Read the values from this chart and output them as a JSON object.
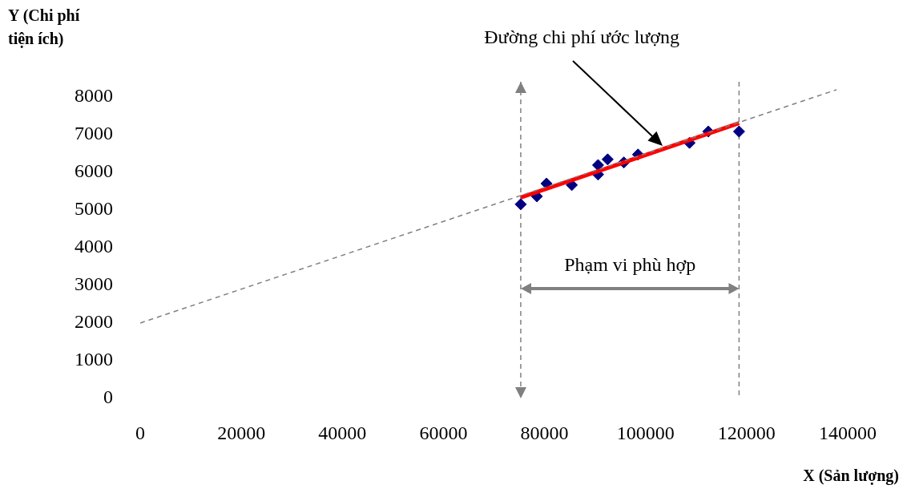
{
  "chart_data": {
    "type": "scatter",
    "xlabel": "X (Sản lượng)",
    "ylabel": "Y (Chi phí tiện ích)",
    "xlim": [
      0,
      140000
    ],
    "ylim": [
      0,
      8400
    ],
    "xticks": [
      0,
      20000,
      40000,
      60000,
      80000,
      100000,
      120000,
      140000
    ],
    "yticks": [
      0,
      1000,
      2000,
      3000,
      4000,
      5000,
      6000,
      7000,
      8000
    ],
    "grid": false,
    "legend": false,
    "series": [
      {
        "type": "line",
        "color": "#808080",
        "line_style": "dashed",
        "marker": "none",
        "x": [
          0,
          137800
        ],
        "values": [
          2000,
          8190
        ]
      },
      {
        "type": "line",
        "color": "#ff0000",
        "line_style": "solid",
        "marker": "none",
        "x": [
          75300,
          118500
        ],
        "values": [
          5330,
          7300
        ]
      },
      {
        "color": "#000080",
        "marker": "diamond",
        "x": [
          75300,
          78500,
          80400,
          85400,
          90600,
          90600,
          92500,
          95700,
          98500,
          108700,
          112400,
          118500
        ],
        "values": [
          5150,
          5360,
          5700,
          5660,
          5940,
          6190,
          6340,
          6260,
          6470,
          6780,
          7080,
          7080
        ]
      }
    ],
    "ref_lines": [
      {
        "axis": "x",
        "value": 75300,
        "label": null,
        "color": "#808080",
        "line_style": "dashed"
      },
      {
        "axis": "x",
        "value": 118500,
        "label": null,
        "color": "#808080",
        "line_style": "dashed"
      }
    ],
    "annotations": [
      "Đường chi phí ước lượng",
      "Phạm vi phù hợp"
    ]
  }
}
